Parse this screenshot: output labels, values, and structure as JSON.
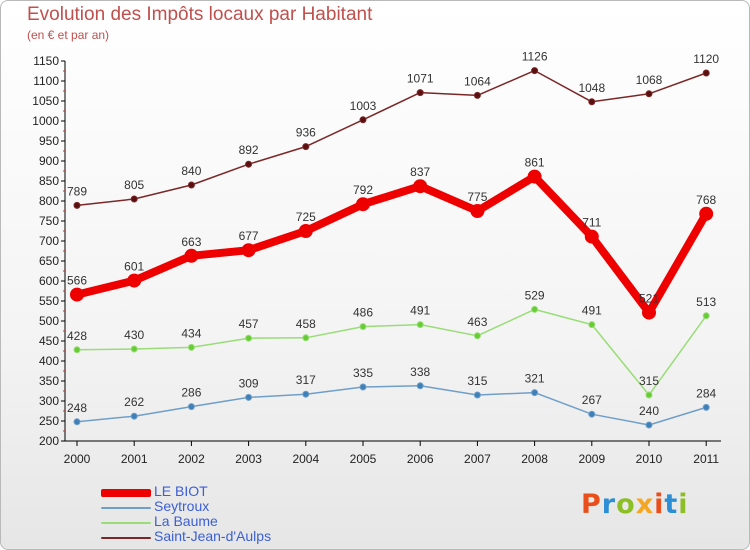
{
  "title": "Evolution des Impôts locaux par Habitant",
  "subtitle": "(en € et par an)",
  "brand": "Proxiti",
  "chart_data": {
    "type": "line",
    "x": [
      "2000",
      "2001",
      "2002",
      "2003",
      "2004",
      "2005",
      "2006",
      "2007",
      "2008",
      "2009",
      "2010",
      "2011"
    ],
    "ylim": [
      200,
      1150
    ],
    "yticks": [
      200,
      250,
      300,
      350,
      400,
      450,
      500,
      550,
      600,
      650,
      700,
      750,
      800,
      850,
      900,
      950,
      1000,
      1050,
      1100,
      1150
    ],
    "grid": false,
    "legend_position": "bottom-left",
    "series": [
      {
        "name": "Saint-Jean-d'Aulps",
        "color": "#7b2727",
        "values": [
          789,
          805,
          840,
          892,
          936,
          1003,
          1071,
          1064,
          1126,
          1048,
          1068,
          1120
        ]
      },
      {
        "name": "LE BIOT",
        "color": "#ee0000",
        "values": [
          566,
          601,
          663,
          677,
          725,
          792,
          837,
          775,
          861,
          711,
          521,
          768
        ]
      },
      {
        "name": "La Baume",
        "color": "#99dd77",
        "values": [
          428,
          430,
          434,
          457,
          458,
          486,
          491,
          463,
          529,
          491,
          315,
          513
        ]
      },
      {
        "name": "Seytroux",
        "color": "#6f9fc8",
        "values": [
          248,
          262,
          286,
          309,
          317,
          335,
          338,
          315,
          321,
          267,
          240,
          284
        ]
      }
    ],
    "legend_order": [
      "LE BIOT",
      "Seytroux",
      "La Baume",
      "Saint-Jean-d'Aulps"
    ]
  }
}
